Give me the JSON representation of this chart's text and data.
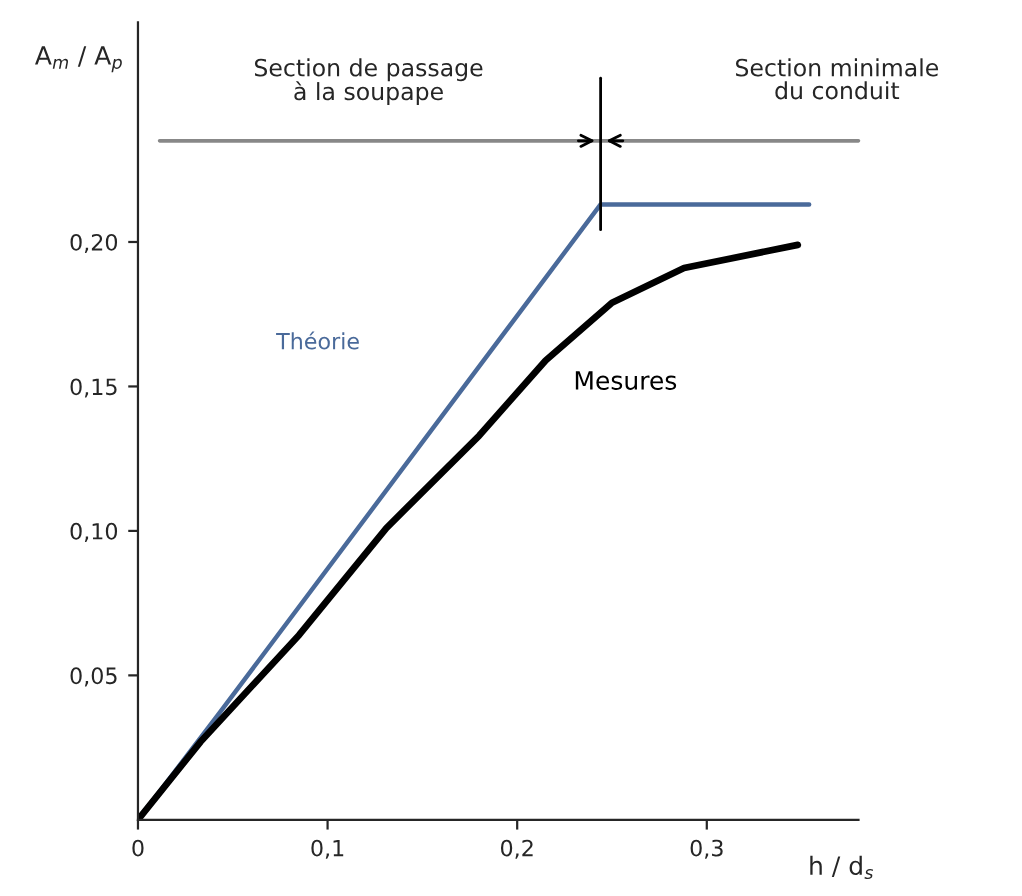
{
  "chart_data": {
    "type": "line",
    "xlabel": "h / d$_{s}$",
    "ylabel": "A$_{m}$ / A$_{p}$",
    "annotations": [
      "Section de passage\nà la soupape",
      "Section minimale\ndu conduit"
    ],
    "series": [
      {
        "name": "Théorie",
        "color": "#4a6a9a",
        "x": [
          0,
          0.043,
          0.244,
          0.354
        ],
        "values": [
          0,
          0.037,
          0.213,
          0.213
        ]
      },
      {
        "name": "Mesures",
        "color": "#000000",
        "x": [
          0,
          0.033,
          0.085,
          0.131,
          0.18,
          0.215,
          0.25,
          0.288,
          0.348
        ],
        "values": [
          0,
          0.027,
          0.064,
          0.101,
          0.133,
          0.159,
          0.179,
          0.191,
          0.199
        ]
      }
    ],
    "xlim": [
      0,
      0.38
    ],
    "ylim": [
      0,
      0.276
    ],
    "xticks": [
      {
        "value": 0,
        "label": "0"
      },
      {
        "value": 0.1,
        "label": "0,1"
      },
      {
        "value": 0.2,
        "label": "0,2"
      },
      {
        "value": 0.3,
        "label": "0,3"
      }
    ],
    "yticks": [
      {
        "value": 0.05,
        "label": "0,05"
      },
      {
        "value": 0.1,
        "label": "0,10"
      },
      {
        "value": 0.15,
        "label": "0,15"
      },
      {
        "value": 0.2,
        "label": "0,20"
      }
    ],
    "ref_lines": [
      {
        "axis": "y",
        "value": 0.235,
        "color": "#888888"
      },
      {
        "axis": "x",
        "value": 0.244,
        "color": "#000000"
      }
    ],
    "grid": false,
    "legend": false,
    "marker": "none",
    "line_style": "solid"
  }
}
